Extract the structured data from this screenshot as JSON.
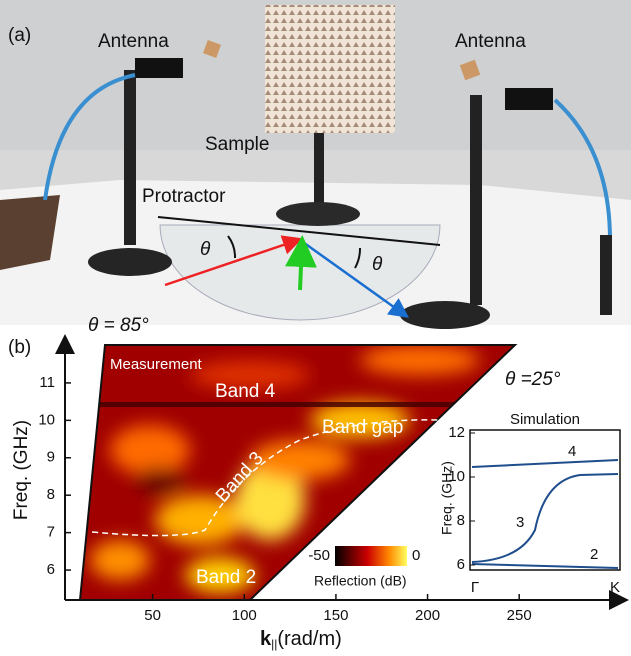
{
  "panel_a": {
    "label": "(a)",
    "antenna_left": "Antenna",
    "antenna_right": "Antenna",
    "sample": "Sample",
    "protractor": "Protractor",
    "angle_left": "θ",
    "angle_right": "θ"
  },
  "panel_b": {
    "label": "(b)",
    "ylabel": "Freq. (GHz)",
    "xlabel": {
      "symbol": "k",
      "subscript": "||",
      "unit": "(rad/m)"
    },
    "xlim": [
      0,
      305
    ],
    "xticks": [
      50,
      100,
      150,
      200,
      250
    ],
    "ylim": [
      5.2,
      12.2
    ],
    "yticks": [
      6,
      7,
      8,
      9,
      10,
      11
    ],
    "angle_max": "θ = 85°",
    "angle_min": "θ =25°",
    "title": "Measurement",
    "bands": [
      "Band 4",
      "Band gap",
      "Band 3",
      "Band 2"
    ],
    "colorbar": {
      "range": [
        -50,
        0
      ],
      "label": "Reflection (dB)"
    },
    "inset": {
      "title": "Simulation",
      "ylabel": "Freq. (GHz)",
      "ylim": [
        6,
        12
      ],
      "yticks": [
        6,
        8,
        10,
        12
      ],
      "xticks": [
        "Γ",
        "K"
      ],
      "curve_labels": [
        "4",
        "3",
        "2"
      ]
    }
  }
}
